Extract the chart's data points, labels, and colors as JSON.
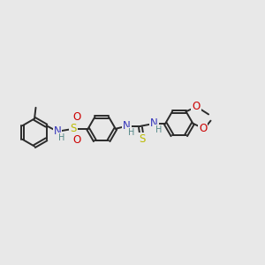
{
  "bg_color": "#e8e8e8",
  "bond_color": "#2a2a2a",
  "bond_width": 1.4,
  "N_color": "#3333bb",
  "S_color": "#bbbb00",
  "O_color": "#cc0000",
  "H_color": "#558888",
  "font_size": 8.5,
  "r_hex": 0.52,
  "xlim": [
    0,
    10
  ],
  "ylim": [
    2.5,
    7.5
  ]
}
